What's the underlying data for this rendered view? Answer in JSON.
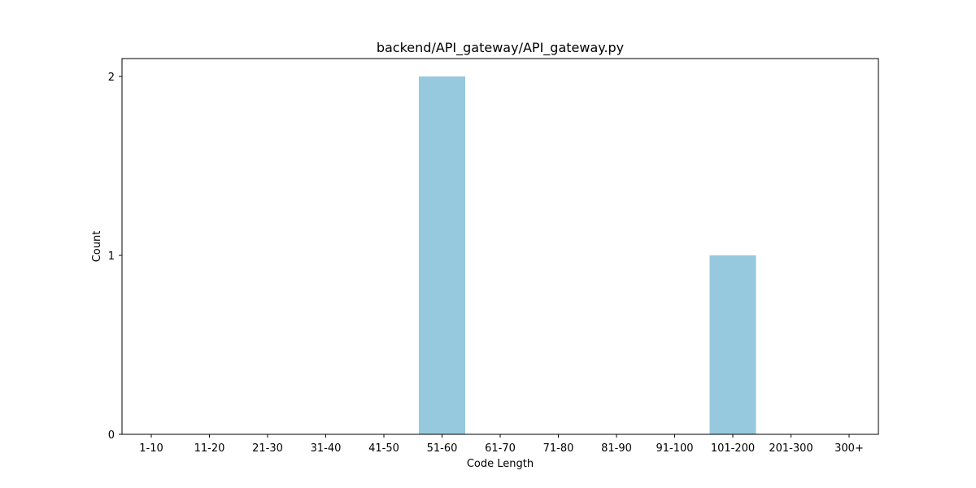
{
  "chart_data": {
    "type": "bar",
    "title": "backend/API_gateway/API_gateway.py",
    "xlabel": "Code Length",
    "ylabel": "Count",
    "categories": [
      "1-10",
      "11-20",
      "21-30",
      "31-40",
      "41-50",
      "51-60",
      "61-70",
      "71-80",
      "81-90",
      "91-100",
      "101-200",
      "201-300",
      "300+"
    ],
    "values": [
      0,
      0,
      0,
      0,
      0,
      2,
      0,
      0,
      0,
      0,
      1,
      0,
      0
    ],
    "ylim": [
      0,
      2.1
    ],
    "yticks": [
      0,
      1,
      2
    ],
    "bar_color": "#96c9de",
    "grid": false,
    "legend": "none"
  }
}
